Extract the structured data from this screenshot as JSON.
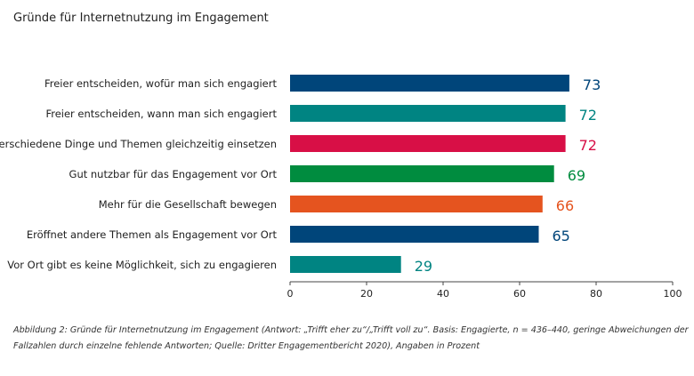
{
  "chart_data": {
    "type": "bar",
    "orientation": "horizontal",
    "title": "Gründe für Internetnutzung im Engagement",
    "categories": [
      "Freier entscheiden, wofür man sich engagiert",
      "Freier entscheiden, wann man sich engagiert",
      "Für verschiedene Dinge und Themen gleichzeitig einsetzen",
      "Gut nutzbar für das Engagement vor Ort",
      "Mehr für die Gesellschaft bewegen",
      "Eröffnet andere Themen als Engagement vor Ort",
      "Vor Ort gibt es keine Möglichkeit, sich zu engagieren"
    ],
    "values": [
      73,
      72,
      72,
      69,
      66,
      65,
      29
    ],
    "colors": [
      "#00457a",
      "#008482",
      "#d80f46",
      "#008c3f",
      "#e5541f",
      "#00457a",
      "#008482"
    ],
    "xlim": [
      0,
      100
    ],
    "xticks": [
      0,
      20,
      40,
      60,
      80,
      100
    ],
    "grid": false
  },
  "caption": {
    "line1": "Abbildung 2: Gründe für Internetnutzung im Engagement (Antwort: „Trifft eher zu“/„Trifft voll zu“. Basis: Engagierte, n = 436–440, geringe Abweichungen der",
    "line2": "Fallzahlen durch einzelne fehlende Antworten; Quelle: Dritter Engagementbericht 2020), Angaben in Prozent"
  }
}
